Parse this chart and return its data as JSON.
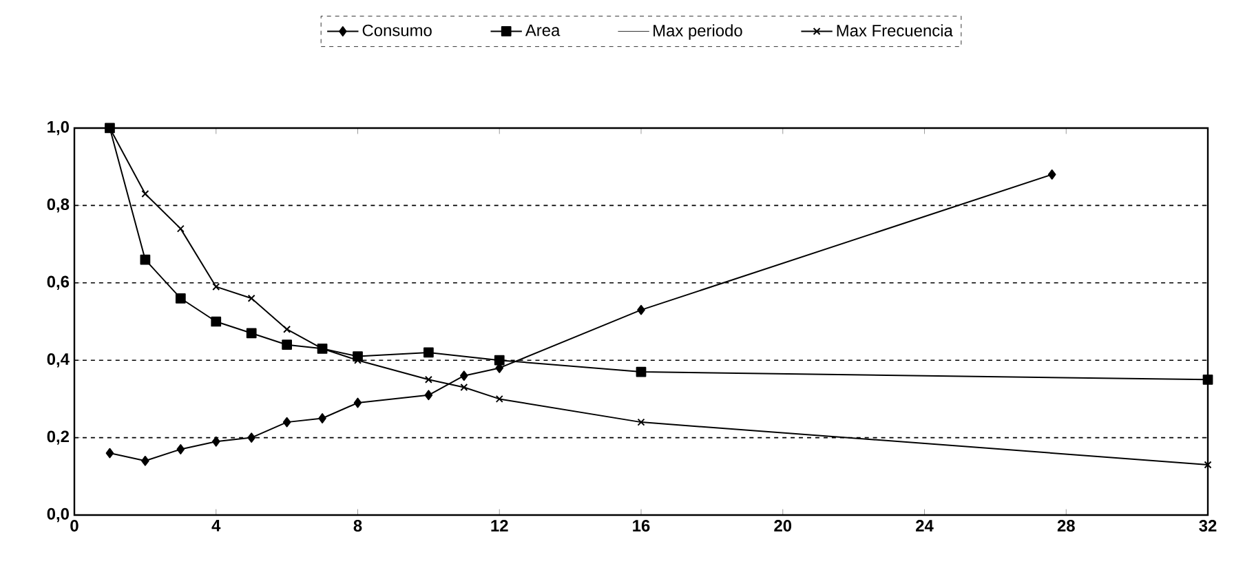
{
  "chart_data": {
    "type": "line",
    "legend": "top",
    "grid": "y",
    "line_style": "solid",
    "xlim": [
      0,
      32
    ],
    "xticks": [
      0,
      4,
      8,
      12,
      16,
      20,
      24,
      28,
      32
    ],
    "ylim": [
      0,
      1
    ],
    "yticks": [
      {
        "value": 0,
        "label": "0,0"
      },
      {
        "value": 0.2,
        "label": "0,2"
      },
      {
        "value": 0.4,
        "label": "0,4"
      },
      {
        "value": 0.6,
        "label": "0,6"
      },
      {
        "value": 0.8,
        "label": "0,8"
      },
      {
        "value": 1,
        "label": "1,0"
      }
    ],
    "series": [
      {
        "name": "Consumo",
        "color": "#000000",
        "marker": "diamond",
        "x": [
          1,
          2,
          3,
          4,
          5,
          6,
          7,
          8,
          10,
          11,
          12,
          16,
          27.6
        ],
        "values": [
          0.16,
          0.14,
          0.17,
          0.19,
          0.2,
          0.24,
          0.25,
          0.29,
          0.31,
          0.36,
          0.38,
          0.53,
          0.88
        ]
      },
      {
        "name": "Area",
        "color": "#000000",
        "marker": "square",
        "x": [
          1,
          2,
          3,
          4,
          5,
          6,
          7,
          8,
          10,
          12,
          16,
          32
        ],
        "values": [
          1.0,
          0.66,
          0.56,
          0.5,
          0.47,
          0.44,
          0.43,
          0.41,
          0.42,
          0.4,
          0.37,
          0.35
        ]
      },
      {
        "name": "Max periodo"
      },
      {
        "name": "Max Frecuencia",
        "color": "#000000",
        "marker": "cross",
        "x": [
          1,
          2,
          3,
          4,
          5,
          6,
          7,
          8,
          10,
          11,
          12,
          16,
          32
        ],
        "values": [
          1.0,
          0.83,
          0.74,
          0.59,
          0.56,
          0.48,
          0.43,
          0.4,
          0.35,
          0.33,
          0.3,
          0.24,
          0.13
        ]
      }
    ]
  }
}
